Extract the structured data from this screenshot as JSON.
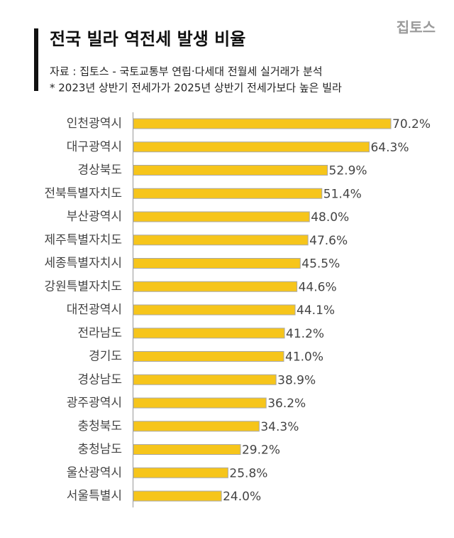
{
  "logo": "집토스",
  "chart_data": {
    "type": "bar",
    "orientation": "horizontal",
    "title": "전국 빌라 역전세 발생 비율",
    "subtitle": [
      "자료 : 집토스 - 국토교통부 연립·다세대 전월세 실거래가 분석",
      "* 2023년 상반기 전세가가 2025년 상반기 전세가보다 높은 빌라"
    ],
    "categories": [
      "인천광역시",
      "대구광역시",
      "경상북도",
      "전북특별자치도",
      "부산광역시",
      "제주특별자치도",
      "세종특별자치시",
      "강원특별자치도",
      "대전광역시",
      "전라남도",
      "경기도",
      "경상남도",
      "광주광역시",
      "충청북도",
      "충청남도",
      "울산광역시",
      "서울특별시"
    ],
    "values": [
      70.2,
      64.3,
      52.9,
      51.4,
      48.0,
      47.6,
      45.5,
      44.6,
      44.1,
      41.2,
      41.0,
      38.9,
      36.2,
      34.3,
      29.2,
      25.8,
      24.0
    ],
    "value_labels": [
      "70.2%",
      "64.3%",
      "52.9%",
      "51.4%",
      "48.0%",
      "47.6%",
      "45.5%",
      "44.6%",
      "44.1%",
      "41.2%",
      "41.0%",
      "38.9%",
      "36.2%",
      "34.3%",
      "29.2%",
      "25.8%",
      "24.0%"
    ],
    "color": "#f6c51b"
  }
}
